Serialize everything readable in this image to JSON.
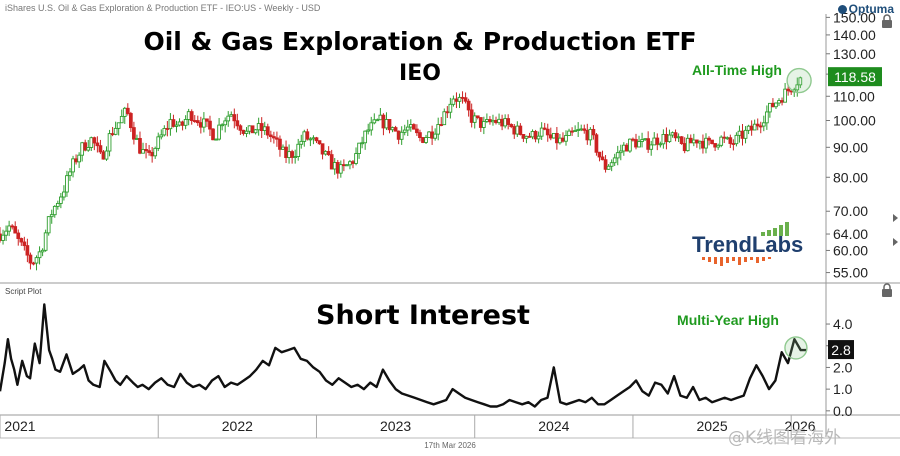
{
  "header": {
    "instrument": "iShares U.S. Oil & Gas Exploration & Production ETF - IEO:US - Weekly - USD",
    "brand": "Optuma"
  },
  "logo": {
    "text": "TrendLabs"
  },
  "footer": {
    "date": "17th Mar 2026",
    "watermark": "@K线图看海外"
  },
  "chart_data": [
    {
      "type": "candlestick",
      "title": "Oil & Gas Exploration & Production ETF",
      "subtitle": "IEO",
      "annotation": "All-Time High",
      "last_value": "118.58",
      "y_scale": "log",
      "ylim": [
        53,
        152
      ],
      "y_ticks": [
        "150.00",
        "140.00",
        "130.00",
        "120.00",
        "110.00",
        "100.00",
        "90.00",
        "80.00",
        "70.00",
        "64.00",
        "60.00",
        "55.00"
      ],
      "x_ticks": [
        "2021",
        "2022",
        "2023",
        "2024",
        "2025",
        "2026"
      ],
      "colors": {
        "up": "#2e9e2e",
        "down": "#cc2222",
        "annotation": "#1f9a1f"
      },
      "series_close_path": [
        [
          2021.0,
          64
        ],
        [
          2021.06,
          66
        ],
        [
          2021.12,
          62
        ],
        [
          2021.2,
          57
        ],
        [
          2021.26,
          60
        ],
        [
          2021.32,
          69
        ],
        [
          2021.4,
          76
        ],
        [
          2021.46,
          84
        ],
        [
          2021.52,
          90
        ],
        [
          2021.58,
          93
        ],
        [
          2021.64,
          86
        ],
        [
          2021.7,
          95
        ],
        [
          2021.76,
          100
        ],
        [
          2021.8,
          104
        ],
        [
          2021.84,
          96
        ],
        [
          2021.88,
          90
        ],
        [
          2021.94,
          86
        ],
        [
          2022.0,
          92
        ],
        [
          2022.08,
          100
        ],
        [
          2022.14,
          97
        ],
        [
          2022.2,
          103
        ],
        [
          2022.3,
          98
        ],
        [
          2022.36,
          94
        ],
        [
          2022.4,
          100
        ],
        [
          2022.46,
          103
        ],
        [
          2022.52,
          98
        ],
        [
          2022.56,
          95
        ],
        [
          2022.62,
          97
        ],
        [
          2022.68,
          96
        ],
        [
          2022.74,
          92
        ],
        [
          2022.8,
          87
        ],
        [
          2022.86,
          88
        ],
        [
          2022.92,
          94
        ],
        [
          2022.98,
          92
        ],
        [
          2023.04,
          88
        ],
        [
          2023.1,
          84
        ],
        [
          2023.16,
          82
        ],
        [
          2023.24,
          86
        ],
        [
          2023.32,
          96
        ],
        [
          2023.4,
          100
        ],
        [
          2023.46,
          98
        ],
        [
          2023.52,
          95
        ],
        [
          2023.58,
          97
        ],
        [
          2023.66,
          93
        ],
        [
          2023.74,
          96
        ],
        [
          2023.82,
          104
        ],
        [
          2023.86,
          110
        ],
        [
          2023.92,
          108
        ],
        [
          2023.98,
          101
        ],
        [
          2024.06,
          98
        ],
        [
          2024.12,
          100
        ],
        [
          2024.18,
          99
        ],
        [
          2024.24,
          97
        ],
        [
          2024.3,
          95
        ],
        [
          2024.36,
          94
        ],
        [
          2024.42,
          96
        ],
        [
          2024.48,
          93
        ],
        [
          2024.56,
          92
        ],
        [
          2024.62,
          95
        ],
        [
          2024.68,
          96
        ],
        [
          2024.74,
          94
        ],
        [
          2024.78,
          88
        ],
        [
          2024.82,
          83
        ],
        [
          2024.88,
          86
        ],
        [
          2024.94,
          90
        ],
        [
          2025.0,
          92
        ],
        [
          2025.08,
          91
        ],
        [
          2025.16,
          93
        ],
        [
          2025.24,
          94
        ],
        [
          2025.32,
          90
        ],
        [
          2025.4,
          93
        ],
        [
          2025.48,
          91
        ],
        [
          2025.56,
          93
        ],
        [
          2025.62,
          91
        ],
        [
          2025.68,
          94
        ],
        [
          2025.76,
          97
        ],
        [
          2025.82,
          101
        ],
        [
          2025.88,
          106
        ],
        [
          2025.94,
          110
        ],
        [
          2026.0,
          114
        ],
        [
          2026.04,
          117
        ],
        [
          2026.07,
          118.58
        ]
      ],
      "all_time_high_marker": {
        "x": 2026.05,
        "y": 117
      }
    },
    {
      "type": "line",
      "title": "Short Interest",
      "annotation": "Multi-Year High",
      "panel_label": "Script Plot",
      "last_value": "2.8",
      "ylim": [
        -0.1,
        5.2
      ],
      "y_ticks": [
        "4.0",
        "3.0",
        "2.0",
        "1.0",
        "0.0"
      ],
      "x_ticks": [
        "2021",
        "2022",
        "2023",
        "2024",
        "2025",
        "2026"
      ],
      "color": "#111111",
      "x": [
        2021.0,
        2021.03,
        2021.05,
        2021.07,
        2021.09,
        2021.11,
        2021.14,
        2021.17,
        2021.19,
        2021.22,
        2021.25,
        2021.28,
        2021.31,
        2021.33,
        2021.35,
        2021.38,
        2021.42,
        2021.46,
        2021.5,
        2021.53,
        2021.56,
        2021.59,
        2021.63,
        2021.66,
        2021.7,
        2021.73,
        2021.76,
        2021.8,
        2021.84,
        2021.87,
        2021.9,
        2021.94,
        2021.98,
        2022.02,
        2022.06,
        2022.1,
        2022.14,
        2022.18,
        2022.22,
        2022.26,
        2022.3,
        2022.34,
        2022.38,
        2022.42,
        2022.46,
        2022.5,
        2022.54,
        2022.58,
        2022.62,
        2022.66,
        2022.7,
        2022.74,
        2022.78,
        2022.82,
        2022.86,
        2022.9,
        2022.94,
        2022.98,
        2023.02,
        2023.06,
        2023.1,
        2023.14,
        2023.18,
        2023.22,
        2023.26,
        2023.3,
        2023.34,
        2023.38,
        2023.42,
        2023.46,
        2023.5,
        2023.54,
        2023.58,
        2023.62,
        2023.66,
        2023.7,
        2023.74,
        2023.78,
        2023.82,
        2023.86,
        2023.9,
        2023.94,
        2023.98,
        2024.02,
        2024.06,
        2024.1,
        2024.14,
        2024.18,
        2024.22,
        2024.26,
        2024.3,
        2024.34,
        2024.38,
        2024.42,
        2024.46,
        2024.5,
        2024.54,
        2024.58,
        2024.62,
        2024.66,
        2024.7,
        2024.74,
        2024.78,
        2024.82,
        2024.86,
        2024.9,
        2024.94,
        2024.98,
        2025.02,
        2025.06,
        2025.1,
        2025.14,
        2025.18,
        2025.22,
        2025.26,
        2025.3,
        2025.34,
        2025.38,
        2025.42,
        2025.46,
        2025.5,
        2025.54,
        2025.58,
        2025.62,
        2025.66,
        2025.7,
        2025.74,
        2025.78,
        2025.82,
        2025.86,
        2025.9,
        2025.94,
        2025.98,
        2026.02,
        2026.06,
        2026.1
      ],
      "values": [
        0.9,
        2.2,
        3.3,
        2.4,
        1.9,
        1.2,
        2.3,
        1.6,
        1.5,
        3.1,
        2.2,
        4.9,
        2.8,
        2.4,
        1.9,
        1.8,
        2.6,
        1.7,
        1.9,
        2.1,
        1.4,
        1.2,
        1.1,
        2.3,
        1.8,
        1.4,
        1.2,
        1.6,
        1.3,
        1.1,
        1.2,
        1.0,
        1.3,
        1.5,
        1.2,
        1.1,
        1.7,
        1.3,
        1.1,
        1.2,
        1.0,
        1.4,
        1.6,
        1.1,
        1.3,
        1.2,
        1.4,
        1.6,
        1.9,
        2.3,
        2.1,
        2.9,
        2.7,
        2.8,
        2.9,
        2.4,
        2.3,
        2.0,
        1.8,
        1.4,
        1.2,
        1.5,
        1.3,
        1.1,
        1.2,
        1.0,
        1.3,
        1.1,
        1.9,
        1.4,
        1.0,
        0.8,
        0.7,
        0.6,
        0.5,
        0.4,
        0.3,
        0.4,
        0.5,
        1.0,
        0.8,
        0.6,
        0.5,
        0.4,
        0.3,
        0.2,
        0.2,
        0.3,
        0.5,
        0.4,
        0.3,
        0.4,
        0.2,
        0.5,
        0.6,
        2.0,
        0.4,
        0.3,
        0.4,
        0.5,
        0.4,
        0.6,
        0.3,
        0.3,
        0.5,
        0.7,
        0.9,
        1.1,
        1.4,
        0.9,
        0.7,
        1.3,
        1.2,
        0.8,
        1.6,
        0.7,
        0.6,
        1.1,
        0.5,
        0.6,
        0.4,
        0.5,
        0.6,
        0.5,
        0.6,
        0.7,
        1.5,
        2.1,
        1.6,
        1.0,
        1.4,
        2.7,
        2.2,
        3.3,
        2.8,
        2.8
      ]
    }
  ]
}
